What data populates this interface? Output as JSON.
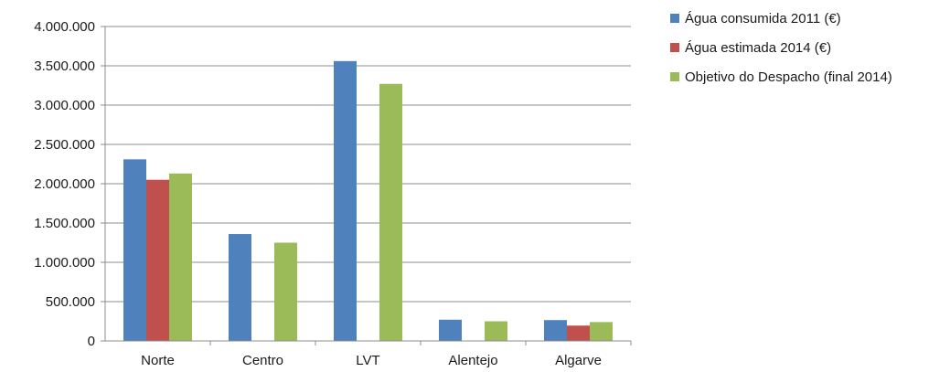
{
  "chart_data": {
    "type": "bar",
    "categories": [
      "Norte",
      "Centro",
      "LVT",
      "Alentejo",
      "Algarve"
    ],
    "series": [
      {
        "name": "Água consumida 2011 (€)",
        "color": "#4F81BD",
        "values": [
          2310000,
          1360000,
          3560000,
          270000,
          265000
        ]
      },
      {
        "name": "Água estimada 2014 (€)",
        "color": "#C0504D",
        "values": [
          2050000,
          null,
          null,
          null,
          195000
        ]
      },
      {
        "name": "Objetivo do Despacho (final 2014)",
        "color": "#9BBB59",
        "values": [
          2130000,
          1250000,
          3270000,
          250000,
          240000
        ]
      }
    ],
    "ylim": [
      0,
      4000000
    ],
    "yticks": [
      0,
      500000,
      1000000,
      1500000,
      2000000,
      2500000,
      3000000,
      3500000,
      4000000
    ],
    "ytick_labels": [
      "0",
      "500.000",
      "1.000.000",
      "1.500.000",
      "2.000.000",
      "2.500.000",
      "3.000.000",
      "3.500.000",
      "4.000.000"
    ],
    "grid": true,
    "legend_position": "right"
  }
}
